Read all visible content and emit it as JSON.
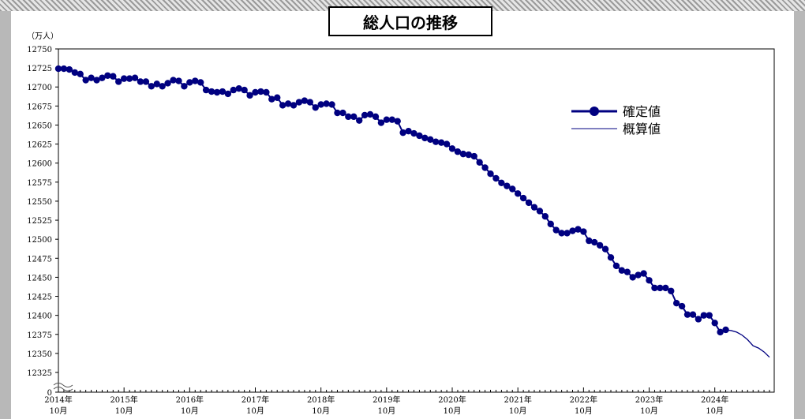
{
  "title": "総人口の推移",
  "chart_data": {
    "type": "line",
    "title": "総人口の推移",
    "unit_label": "（万人）",
    "ylim": [
      12325,
      12750
    ],
    "y_ticks": [
      "0",
      "12325",
      "12350",
      "12375",
      "12400",
      "12425",
      "12450",
      "12475",
      "12500",
      "12525",
      "12550",
      "12575",
      "12600",
      "12625",
      "12650",
      "12675",
      "12700",
      "12725",
      "12750"
    ],
    "x_labels": [
      {
        "year": "2014年",
        "month": "10月"
      },
      {
        "year": "2015年",
        "month": "10月"
      },
      {
        "year": "2016年",
        "month": "10月"
      },
      {
        "year": "2017年",
        "month": "10月"
      },
      {
        "year": "2018年",
        "month": "10月"
      },
      {
        "year": "2019年",
        "month": "10月"
      },
      {
        "year": "2020年",
        "month": "10月"
      },
      {
        "year": "2021年",
        "month": "10月"
      },
      {
        "year": "2022年",
        "month": "10月"
      },
      {
        "year": "2023年",
        "month": "10月"
      },
      {
        "year": "2024年",
        "month": "10月"
      }
    ],
    "x_start": "2014-10",
    "axis_break": true,
    "legend": {
      "placement": "right",
      "entries": [
        "確定値",
        "概算値"
      ]
    },
    "series": [
      {
        "name": "確定値",
        "style": "line-with-markers",
        "color": "#000080",
        "values": [
          12724,
          12724,
          12723,
          12719,
          12717,
          12709,
          12712,
          12709,
          12712,
          12715,
          12714,
          12707,
          12711,
          12711,
          12712,
          12707,
          12707,
          12701,
          12704,
          12701,
          12705,
          12709,
          12708,
          12701,
          12706,
          12708,
          12706,
          12696,
          12694,
          12693,
          12694,
          12691,
          12696,
          12698,
          12696,
          12689,
          12693,
          12694,
          12693,
          12684,
          12686,
          12676,
          12678,
          12676,
          12680,
          12682,
          12680,
          12673,
          12677,
          12678,
          12677,
          12666,
          12666,
          12661,
          12661,
          12656,
          12663,
          12664,
          12661,
          12653,
          12657,
          12657,
          12655,
          12640,
          12642,
          12639,
          12636,
          12633,
          12631,
          12628,
          12627,
          12625,
          12619,
          12615,
          12612,
          12611,
          12609,
          12601,
          12594,
          12586,
          12580,
          12574,
          12570,
          12566,
          12560,
          12554,
          12548,
          12542,
          12537,
          12530,
          12520,
          12512,
          12508,
          12508,
          12511,
          12513,
          12510,
          12498,
          12496,
          12492,
          12487,
          12476,
          12465,
          12459,
          12457,
          12450,
          12453,
          12455,
          12446,
          12436,
          12436,
          12436,
          12432,
          12416,
          12412,
          12401,
          12401,
          12395,
          12400,
          12400,
          12390,
          12378,
          12381
        ]
      },
      {
        "name": "概算値",
        "style": "line",
        "color": "#000080",
        "values": [
          12381,
          12380,
          12378,
          12374,
          12368,
          12360,
          12357,
          12352,
          12345
        ]
      }
    ]
  }
}
